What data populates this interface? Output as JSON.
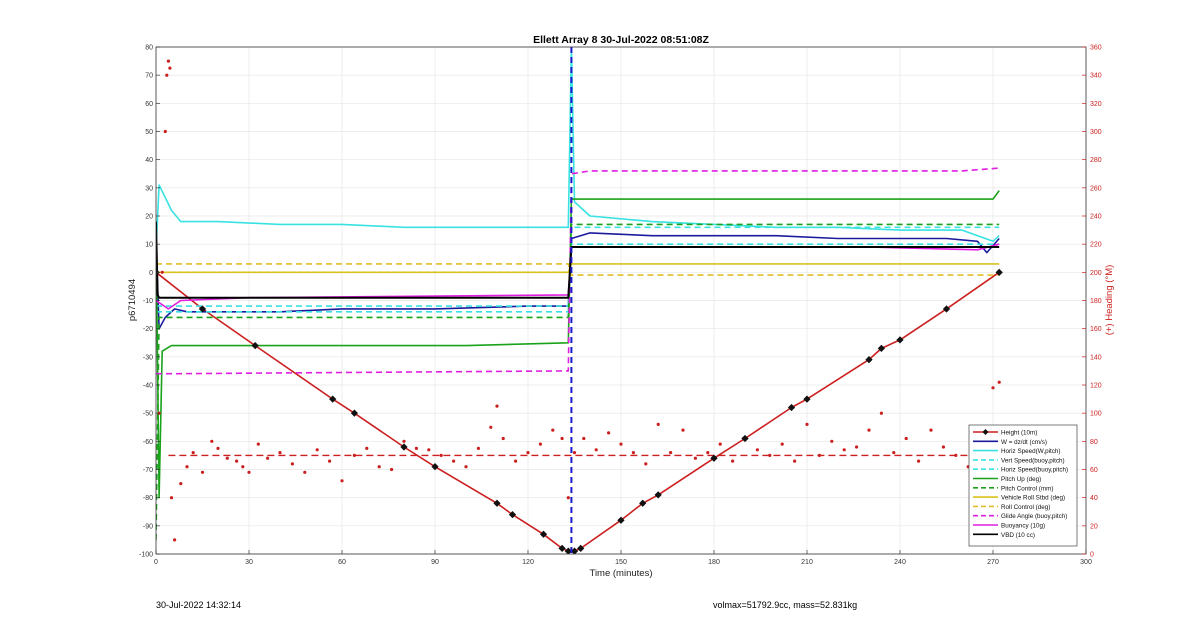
{
  "chart_data": {
    "type": "line",
    "title": "Ellett Array 8 30-Jul-2022 08:51:08Z",
    "xlabel": "Time (minutes)",
    "ylabel_left": "p6710494",
    "ylabel_right": "(+) Heading (°M)",
    "xlim": [
      0,
      300
    ],
    "ylim_left": [
      -100,
      80
    ],
    "ylim_right": [
      0,
      360
    ],
    "x_ticks": [
      "0",
      "30",
      "60",
      "90",
      "120",
      "150",
      "180",
      "210",
      "240",
      "270",
      "300"
    ],
    "y_ticks_left": [
      "-100",
      "-90",
      "-80",
      "-70",
      "-60",
      "-50",
      "-40",
      "-30",
      "-20",
      "-10",
      "0",
      "10",
      "20",
      "30",
      "40",
      "50",
      "60",
      "70",
      "80"
    ],
    "y_ticks_right": [
      "0",
      "20",
      "40",
      "60",
      "80",
      "100",
      "120",
      "140",
      "160",
      "180",
      "200",
      "220",
      "240",
      "260",
      "280",
      "300",
      "320",
      "340",
      "360"
    ],
    "grid": true,
    "legend_position": "bottom-right",
    "colors": {
      "height": "#cc1f1f",
      "w": "#1b1b9e",
      "horiz_w": "#38e2e2",
      "vert_buoy": "#38e2e2",
      "horiz_buoy": "#38e2e2",
      "pitch_up": "#1aa31a",
      "pitch_control": "#1aa31a",
      "roll": "#d9c21a",
      "roll_control": "#e0be28",
      "glide": "#e01ee0",
      "buoyancy": "#e01ee0",
      "vbd": "#000000",
      "heading": "#cc1f1f",
      "right_axis": "#cc2020",
      "marker": "#111111"
    },
    "series": [
      {
        "name": "Height (10m)",
        "key": "height",
        "style": "solid-marker",
        "x": [
          0,
          15,
          32,
          57,
          64,
          80,
          90,
          110,
          115,
          125,
          131,
          133,
          135,
          137,
          150,
          157,
          162,
          180,
          190,
          205,
          210,
          230,
          234,
          240,
          255,
          272
        ],
        "y": [
          0,
          -13,
          -26,
          -45,
          -50,
          -62,
          -69,
          -82,
          -86,
          -93,
          -98,
          -99,
          -99,
          -98,
          -88,
          -82,
          -79,
          -66,
          -59,
          -48,
          -45,
          -31,
          -27,
          -24,
          -13,
          0
        ]
      },
      {
        "name": "W = dz/dt (cm/s)",
        "key": "w",
        "style": "solid",
        "x": [
          0,
          1,
          3,
          6,
          10,
          20,
          40,
          60,
          90,
          120,
          133,
          134,
          140,
          160,
          180,
          200,
          220,
          240,
          255,
          265,
          268,
          272
        ],
        "y": [
          12,
          -20,
          -16,
          -13,
          -14,
          -14,
          -14,
          -13,
          -13,
          -12,
          -12,
          12,
          14,
          13,
          13,
          13,
          12,
          12,
          12,
          11,
          7,
          12
        ]
      },
      {
        "name": "Horiz Speed(W,pitch)",
        "key": "horiz_w",
        "style": "solid",
        "x": [
          0,
          1,
          5,
          8,
          20,
          40,
          60,
          80,
          100,
          120,
          133,
          134,
          135,
          140,
          160,
          180,
          200,
          220,
          240,
          260,
          270,
          272
        ],
        "y": [
          8,
          31,
          22,
          18,
          18,
          17,
          17,
          16,
          16,
          16,
          16,
          80,
          25,
          20,
          18,
          17,
          16,
          16,
          15,
          15,
          11,
          13
        ]
      },
      {
        "name": "Vert Speed(buoy,pitch)",
        "key": "vert_buoy",
        "style": "dashed",
        "x": [
          0,
          6,
          133,
          134,
          272
        ],
        "y": [
          -12,
          -12,
          -12,
          10,
          10
        ]
      },
      {
        "name": "Horiz Speed(buoy,pitch)",
        "key": "horiz_buoy",
        "style": "dashed",
        "x": [
          0,
          6,
          133,
          134,
          272
        ],
        "y": [
          -14,
          -14,
          -14,
          16,
          16
        ]
      },
      {
        "name": "Pitch Up (deg)",
        "key": "pitch_up",
        "style": "solid",
        "x": [
          0,
          1,
          2,
          5,
          20,
          60,
          100,
          133,
          134,
          140,
          180,
          220,
          255,
          270,
          272
        ],
        "y": [
          15,
          -80,
          -28,
          -26,
          -26,
          -26,
          -26,
          -25,
          26,
          26,
          26,
          26,
          26,
          26,
          29
        ]
      },
      {
        "name": "Pitch Control (mm)",
        "key": "pitch_control",
        "style": "dashed",
        "x": [
          0,
          1,
          133,
          134,
          272
        ],
        "y": [
          -95,
          -16,
          -16,
          17,
          17
        ]
      },
      {
        "name": "Vehicle Roll Stbd (deg)",
        "key": "roll",
        "style": "solid",
        "x": [
          0,
          5,
          133,
          134,
          150,
          270,
          272
        ],
        "y": [
          0,
          0,
          0,
          3,
          3,
          3,
          3
        ]
      },
      {
        "name": "Roll Control (deg)",
        "key": "roll_control",
        "style": "dashed",
        "x": [
          0,
          3,
          133,
          134,
          150,
          270,
          272
        ],
        "y": [
          3,
          3,
          3,
          -1,
          -1,
          -1,
          -1
        ]
      },
      {
        "name": "Glide Angle (buoy,pitch)",
        "key": "glide",
        "style": "dashed",
        "x": [
          0,
          6,
          133,
          134,
          140,
          180,
          220,
          260,
          272
        ],
        "y": [
          -36,
          -36,
          -35,
          35,
          36,
          36,
          36,
          36,
          37
        ]
      },
      {
        "name": "Buoyancy (10g)",
        "key": "buoyancy",
        "style": "solid",
        "x": [
          0,
          4,
          8,
          30,
          133,
          134,
          140,
          180,
          230,
          265,
          272
        ],
        "y": [
          -10,
          -13,
          -10,
          -9,
          -8,
          9,
          9,
          9,
          9,
          8,
          10
        ]
      },
      {
        "name": "VBD (10 cc)",
        "key": "vbd",
        "style": "solid",
        "x": [
          0,
          0.5,
          1,
          133,
          134,
          272
        ],
        "y": [
          18,
          -8,
          -9,
          -9,
          9,
          9
        ]
      }
    ],
    "heading": {
      "axis": "right",
      "mean": 70,
      "x": [
        1,
        2,
        3,
        3.5,
        4,
        4.5,
        5,
        6,
        8,
        10,
        12,
        15,
        18,
        20,
        23,
        26,
        28,
        30,
        33,
        36,
        40,
        44,
        48,
        52,
        56,
        60,
        64,
        68,
        72,
        76,
        80,
        84,
        88,
        92,
        96,
        100,
        104,
        108,
        110,
        112,
        116,
        120,
        124,
        128,
        131,
        133,
        135,
        138,
        142,
        146,
        150,
        154,
        158,
        162,
        166,
        170,
        174,
        178,
        182,
        186,
        190,
        194,
        198,
        202,
        206,
        210,
        214,
        218,
        222,
        226,
        230,
        234,
        238,
        242,
        246,
        250,
        254,
        258,
        262,
        266,
        270,
        272
      ],
      "y": [
        100,
        200,
        300,
        340,
        350,
        345,
        40,
        10,
        50,
        62,
        72,
        58,
        80,
        75,
        68,
        66,
        62,
        58,
        78,
        68,
        72,
        64,
        58,
        74,
        66,
        52,
        70,
        75,
        62,
        60,
        80,
        75,
        74,
        70,
        66,
        62,
        75,
        90,
        105,
        82,
        66,
        72,
        78,
        88,
        82,
        40,
        72,
        82,
        74,
        86,
        78,
        72,
        64,
        92,
        72,
        88,
        68,
        72,
        78,
        66,
        82,
        74,
        70,
        78,
        66,
        92,
        70,
        80,
        74,
        76,
        88,
        100,
        72,
        82,
        66,
        88,
        76,
        70,
        62,
        74,
        118,
        122
      ]
    },
    "markers_x": [
      0,
      15,
      32,
      57,
      64,
      80,
      90,
      110,
      115,
      125,
      131,
      133,
      135,
      137,
      150,
      157,
      162,
      180,
      190,
      205,
      210,
      230,
      234,
      240,
      255,
      272
    ]
  },
  "footer": {
    "timestamp": "30-Jul-2022 14:32:14",
    "mass_info": "volmax=51792.9cc, mass=52.831kg"
  }
}
